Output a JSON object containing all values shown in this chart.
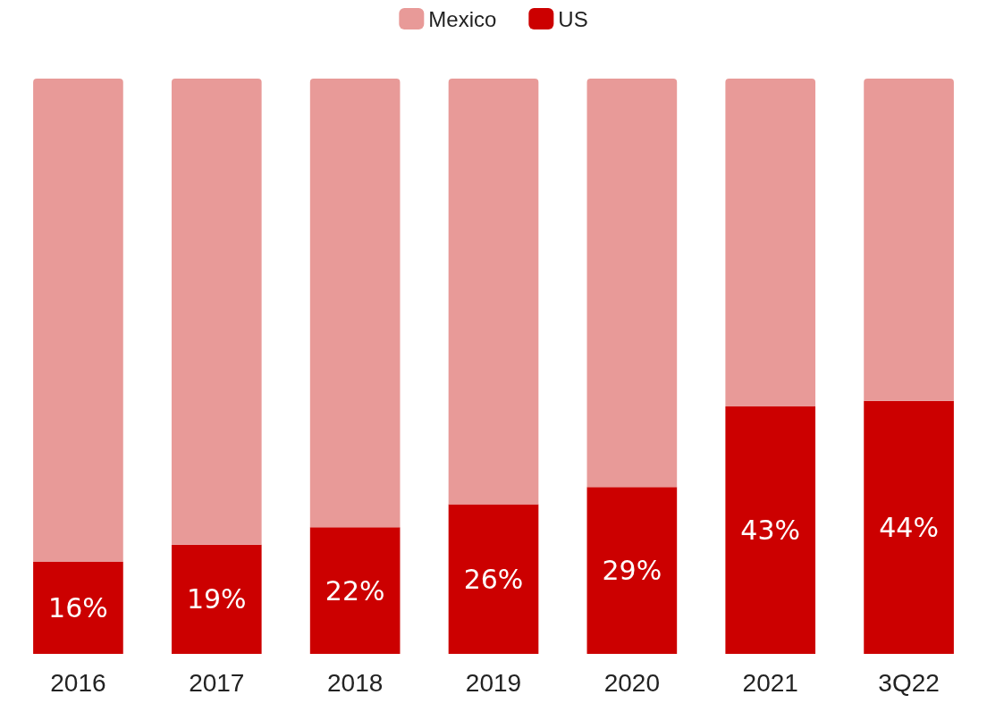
{
  "chart_data": {
    "type": "bar",
    "stacked": true,
    "categories": [
      "2016",
      "2017",
      "2018",
      "2019",
      "2020",
      "2021",
      "3Q22"
    ],
    "series": [
      {
        "name": "US",
        "color": "#cc0000",
        "values": [
          16,
          19,
          22,
          26,
          29,
          43,
          44
        ],
        "value_labels": [
          "16%",
          "19%",
          "22%",
          "26%",
          "29%",
          "43%",
          "44%"
        ]
      },
      {
        "name": "Mexico",
        "color": "#e89a98",
        "values": [
          84,
          81,
          78,
          74,
          71,
          57,
          56
        ]
      }
    ],
    "ylim": [
      0,
      100
    ],
    "tick_labels": "x",
    "legend": "top",
    "grid": false
  }
}
